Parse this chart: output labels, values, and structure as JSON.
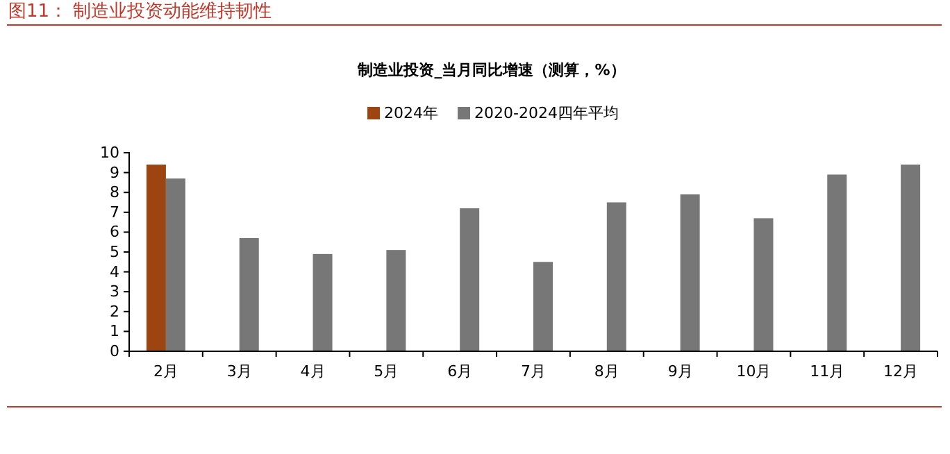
{
  "chart_data": {
    "type": "bar",
    "title": "制造业投资_当月同比增速（测算，%）",
    "annotations": [
      "图11：  制造业投资动能维持韧性"
    ],
    "categories": [
      "2月",
      "3月",
      "4月",
      "5月",
      "6月",
      "7月",
      "8月",
      "9月",
      "10月",
      "11月",
      "12月"
    ],
    "series": [
      {
        "name": "2024年",
        "color": "#9c4511",
        "values": [
          9.4,
          null,
          null,
          null,
          null,
          null,
          null,
          null,
          null,
          null,
          null
        ]
      },
      {
        "name": "2020-2024四年平均",
        "color": "#777777",
        "values": [
          8.7,
          5.7,
          4.9,
          5.1,
          7.2,
          4.5,
          7.5,
          7.9,
          6.7,
          8.9,
          9.4
        ]
      }
    ],
    "ylim": [
      0,
      10
    ],
    "yticks": [
      0,
      1,
      2,
      3,
      4,
      5,
      6,
      7,
      8,
      9,
      10
    ],
    "grid": false,
    "legend": "top"
  }
}
